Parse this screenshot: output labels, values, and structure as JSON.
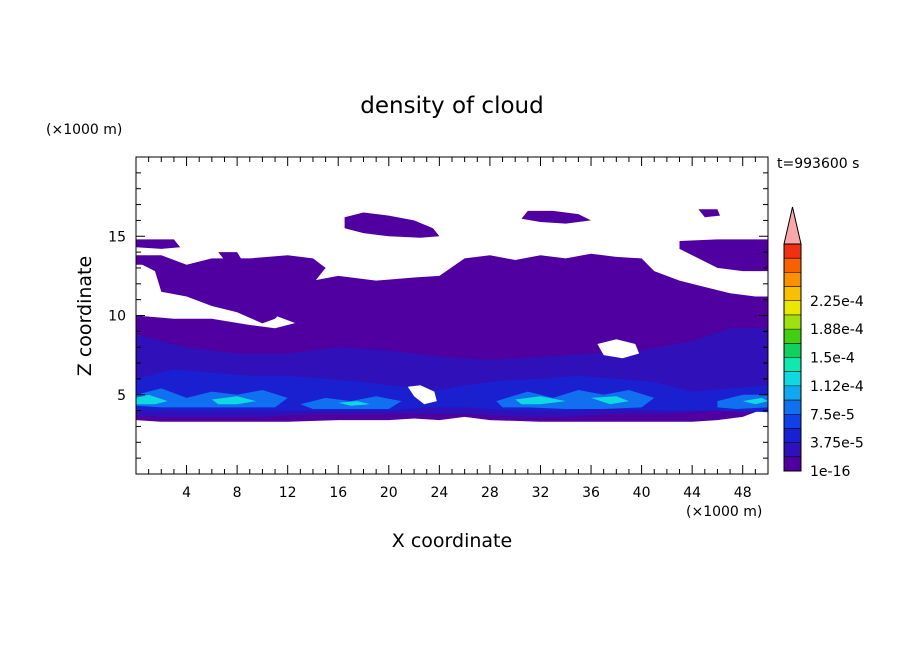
{
  "chart_data": {
    "type": "heatmap",
    "title": "density of cloud",
    "xlabel": "X coordinate",
    "ylabel": "Z coordinate",
    "x_unit": "(×1000 m)",
    "y_unit": "(×1000 m)",
    "time_label": "t=993600 s",
    "xlim": [
      0,
      50
    ],
    "ylim": [
      0,
      20
    ],
    "x_ticks": [
      4,
      8,
      12,
      16,
      20,
      24,
      28,
      32,
      36,
      40,
      44,
      48
    ],
    "y_ticks": [
      5,
      10,
      15
    ],
    "colorbar": {
      "labels": [
        "1e-16",
        "3.75e-5",
        "7.5e-5",
        "1.12e-4",
        "1.5e-4",
        "1.88e-4",
        "2.25e-4"
      ],
      "colors": [
        "#5000a0",
        "#3010b8",
        "#1a20d0",
        "#1040e8",
        "#1070f0",
        "#10a8f0",
        "#10d8e0",
        "#10e8b0",
        "#10d060",
        "#40d010",
        "#a0e010",
        "#e8e800",
        "#f8c000",
        "#f89000",
        "#f86000",
        "#f03010"
      ],
      "extend_color": "#f8a8a8"
    },
    "layers": [
      {
        "name": "upper cloud cap",
        "color": "#5000a0",
        "polygons": [
          [
            [
              0,
              14.5
            ],
            [
              0,
              13.8
            ],
            [
              2,
              13.8
            ],
            [
              4,
              13.2
            ],
            [
              6,
              13.6
            ],
            [
              9,
              13.6
            ],
            [
              12,
              13.8
            ],
            [
              14,
              13.6
            ],
            [
              15,
              13
            ],
            [
              14,
              12
            ],
            [
              13,
              11.2
            ],
            [
              12,
              10.6
            ],
            [
              11,
              9.8
            ],
            [
              10,
              9.5
            ],
            [
              8,
              10.2
            ],
            [
              6,
              10.6
            ],
            [
              4,
              11.2
            ],
            [
              2,
              11.5
            ],
            [
              1.5,
              12.8
            ],
            [
              0.5,
              13.2
            ],
            [
              0,
              13.2
            ]
          ],
          [
            [
              11,
              10
            ],
            [
              12.5,
              11.5
            ],
            [
              14,
              12.2
            ],
            [
              16,
              12.5
            ],
            [
              19,
              12.2
            ],
            [
              22,
              12.4
            ],
            [
              24,
              12.5
            ],
            [
              26,
              13.6
            ],
            [
              28,
              13.8
            ],
            [
              30,
              13.5
            ],
            [
              32,
              13.8
            ],
            [
              34,
              13.6
            ],
            [
              36,
              13.9
            ],
            [
              38,
              13.7
            ],
            [
              40,
              13.6
            ],
            [
              41,
              12.8
            ],
            [
              43,
              12.2
            ],
            [
              45,
              11.8
            ],
            [
              47,
              11.4
            ],
            [
              49,
              11.2
            ],
            [
              50,
              11.2
            ],
            [
              50,
              9.5
            ],
            [
              47,
              9
            ],
            [
              44,
              9
            ],
            [
              40,
              8.6
            ],
            [
              36,
              8.2
            ],
            [
              32,
              8
            ],
            [
              28,
              8
            ],
            [
              24,
              8
            ],
            [
              20,
              8.2
            ],
            [
              16,
              8.6
            ],
            [
              13,
              9.4
            ]
          ],
          [
            [
              16.5,
              16.2
            ],
            [
              18,
              16.5
            ],
            [
              20,
              16.3
            ],
            [
              22,
              16
            ],
            [
              23.5,
              15.5
            ],
            [
              24,
              15
            ],
            [
              22.5,
              14.9
            ],
            [
              20,
              15
            ],
            [
              18,
              15.2
            ],
            [
              16.5,
              15.5
            ]
          ],
          [
            [
              31,
              16.6
            ],
            [
              33,
              16.6
            ],
            [
              35,
              16.4
            ],
            [
              36,
              16
            ],
            [
              34,
              15.8
            ],
            [
              32,
              15.9
            ],
            [
              30.5,
              16.1
            ]
          ],
          [
            [
              44.5,
              16.7
            ],
            [
              46,
              16.7
            ],
            [
              46.2,
              16.3
            ],
            [
              45,
              16.2
            ]
          ],
          [
            [
              43,
              14.7
            ],
            [
              46,
              14.8
            ],
            [
              50,
              14.8
            ],
            [
              50,
              12.8
            ],
            [
              48,
              12.8
            ],
            [
              46,
              13
            ],
            [
              44.5,
              13.6
            ],
            [
              43,
              14.2
            ]
          ],
          [
            [
              6.5,
              14
            ],
            [
              8,
              14
            ],
            [
              8.3,
              13.6
            ],
            [
              7,
              13.5
            ]
          ],
          [
            [
              0,
              14.8
            ],
            [
              3,
              14.8
            ],
            [
              3.5,
              14.3
            ],
            [
              2,
              14.2
            ],
            [
              0,
              14.3
            ]
          ]
        ]
      },
      {
        "name": "main cloud body",
        "color": "#5000a0",
        "polygons": [
          [
            [
              0,
              10
            ],
            [
              3,
              9.8
            ],
            [
              6,
              9.8
            ],
            [
              9,
              9.4
            ],
            [
              11,
              9.2
            ],
            [
              13,
              9.6
            ],
            [
              16,
              10
            ],
            [
              20,
              9.8
            ],
            [
              24,
              10
            ],
            [
              28,
              9.8
            ],
            [
              32,
              9.6
            ],
            [
              36,
              9.2
            ],
            [
              40,
              9.6
            ],
            [
              44,
              9.4
            ],
            [
              47,
              10
            ],
            [
              50,
              9.8
            ],
            [
              50,
              4.2
            ],
            [
              48,
              3.6
            ],
            [
              46,
              3.4
            ],
            [
              44,
              3.3
            ],
            [
              40,
              3.3
            ],
            [
              36,
              3.3
            ],
            [
              32,
              3.3
            ],
            [
              28,
              3.4
            ],
            [
              26,
              3.6
            ],
            [
              24,
              3.4
            ],
            [
              22,
              3.5
            ],
            [
              20,
              3.4
            ],
            [
              16,
              3.4
            ],
            [
              12,
              3.3
            ],
            [
              8,
              3.3
            ],
            [
              4,
              3.3
            ],
            [
              2,
              3.3
            ],
            [
              0,
              3.4
            ]
          ]
        ]
      },
      {
        "name": "mid layer",
        "color": "#3010b8",
        "polygons": [
          [
            [
              0,
              8.8
            ],
            [
              4,
              8
            ],
            [
              8,
              7.6
            ],
            [
              12,
              7.6
            ],
            [
              16,
              8
            ],
            [
              20,
              7.8
            ],
            [
              24,
              7.4
            ],
            [
              28,
              7.2
            ],
            [
              32,
              7.4
            ],
            [
              36,
              7.6
            ],
            [
              40,
              7.8
            ],
            [
              44,
              8.4
            ],
            [
              47,
              9.2
            ],
            [
              50,
              9.2
            ],
            [
              50,
              4.4
            ],
            [
              46,
              4
            ],
            [
              42,
              3.8
            ],
            [
              38,
              3.8
            ],
            [
              34,
              3.6
            ],
            [
              30,
              3.6
            ],
            [
              26,
              3.8
            ],
            [
              22,
              3.8
            ],
            [
              18,
              3.8
            ],
            [
              14,
              3.8
            ],
            [
              10,
              3.6
            ],
            [
              6,
              3.6
            ],
            [
              2,
              3.6
            ],
            [
              0,
              3.7
            ]
          ]
        ]
      },
      {
        "name": "dense lower band",
        "color": "#1a20d0",
        "polygons": [
          [
            [
              0,
              6
            ],
            [
              3,
              6.6
            ],
            [
              6,
              6.4
            ],
            [
              9,
              6.2
            ],
            [
              12,
              6.2
            ],
            [
              15,
              6
            ],
            [
              18,
              5.8
            ],
            [
              21,
              5.5
            ],
            [
              24,
              5.3
            ],
            [
              26,
              5.6
            ],
            [
              29,
              5.9
            ],
            [
              32,
              6
            ],
            [
              35,
              6.2
            ],
            [
              38,
              6
            ],
            [
              41,
              5.8
            ],
            [
              44,
              5.2
            ],
            [
              47,
              5.4
            ],
            [
              50,
              5.6
            ],
            [
              50,
              3.9
            ],
            [
              46,
              4
            ],
            [
              42,
              4
            ],
            [
              38,
              4.1
            ],
            [
              34,
              4
            ],
            [
              30,
              4
            ],
            [
              26,
              4.2
            ],
            [
              23,
              4.2
            ],
            [
              20,
              4
            ],
            [
              16,
              4
            ],
            [
              12,
              4
            ],
            [
              8,
              4
            ],
            [
              4,
              4
            ],
            [
              0,
              4
            ]
          ]
        ]
      },
      {
        "name": "blue cores",
        "color": "#1070f0",
        "polygons": [
          [
            [
              0,
              5
            ],
            [
              2,
              5.4
            ],
            [
              4,
              4.8
            ],
            [
              6,
              5.2
            ],
            [
              8,
              5
            ],
            [
              10,
              5.3
            ],
            [
              12,
              4.8
            ],
            [
              11,
              4.2
            ],
            [
              8,
              4.2
            ],
            [
              5,
              4.2
            ],
            [
              2,
              4.2
            ],
            [
              0,
              4.3
            ]
          ],
          [
            [
              13,
              4.4
            ],
            [
              15,
              4.8
            ],
            [
              17,
              4.6
            ],
            [
              19,
              4.9
            ],
            [
              21,
              4.6
            ],
            [
              20,
              4.1
            ],
            [
              17,
              4.1
            ],
            [
              14,
              4.1
            ]
          ],
          [
            [
              28.5,
              4.6
            ],
            [
              31,
              5.2
            ],
            [
              33,
              4.8
            ],
            [
              35,
              5.3
            ],
            [
              37,
              5
            ],
            [
              39,
              5.3
            ],
            [
              41,
              4.8
            ],
            [
              40,
              4.2
            ],
            [
              37,
              4.1
            ],
            [
              34,
              4.1
            ],
            [
              31,
              4.2
            ],
            [
              29,
              4.2
            ]
          ],
          [
            [
              46,
              4.6
            ],
            [
              48,
              5
            ],
            [
              50,
              5
            ],
            [
              50,
              4.2
            ],
            [
              47.5,
              4.1
            ],
            [
              46,
              4.2
            ]
          ]
        ]
      },
      {
        "name": "cyan peaks",
        "color": "#10d8e0",
        "polygons": [
          [
            [
              0,
              4.8
            ],
            [
              1,
              5
            ],
            [
              2.5,
              4.6
            ],
            [
              1.5,
              4.4
            ],
            [
              0,
              4.4
            ]
          ],
          [
            [
              6,
              4.7
            ],
            [
              8,
              4.9
            ],
            [
              9.5,
              4.6
            ],
            [
              8,
              4.4
            ],
            [
              6.5,
              4.4
            ]
          ],
          [
            [
              16,
              4.5
            ],
            [
              17.5,
              4.6
            ],
            [
              18.5,
              4.4
            ],
            [
              17,
              4.3
            ]
          ],
          [
            [
              30,
              4.7
            ],
            [
              32,
              4.9
            ],
            [
              34,
              4.6
            ],
            [
              32,
              4.4
            ],
            [
              30.5,
              4.4
            ]
          ],
          [
            [
              36,
              4.8
            ],
            [
              38,
              4.9
            ],
            [
              39,
              4.6
            ],
            [
              37.5,
              4.4
            ]
          ],
          [
            [
              48,
              4.6
            ],
            [
              49.5,
              4.8
            ],
            [
              50,
              4.6
            ],
            [
              49,
              4.4
            ]
          ]
        ]
      },
      {
        "name": "clear gap",
        "color": "#ffffff",
        "polygons": [
          [
            [
              36.5,
              8.2
            ],
            [
              38,
              8.5
            ],
            [
              39.5,
              8.2
            ],
            [
              39.8,
              7.6
            ],
            [
              38.5,
              7.3
            ],
            [
              37,
              7.5
            ]
          ],
          [
            [
              21.5,
              5.5
            ],
            [
              22.5,
              5.6
            ],
            [
              23.6,
              5.2
            ],
            [
              23.8,
              4.6
            ],
            [
              22.8,
              4.4
            ],
            [
              22,
              4.9
            ]
          ]
        ]
      }
    ]
  }
}
